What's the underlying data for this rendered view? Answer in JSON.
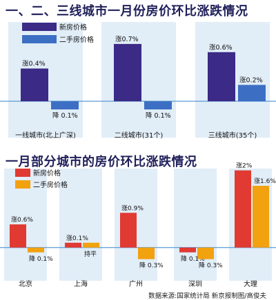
{
  "chart_data": [
    {
      "type": "bar",
      "title": "一、二、三线城市一月份房价环比涨跌情况",
      "categories": [
        "一线城市(北上广深)",
        "二线城市(31个)",
        "三线城市(35个)"
      ],
      "series": [
        {
          "name": "新房价格",
          "values": [
            0.4,
            0.7,
            0.6
          ],
          "labels": [
            "涨0.4%",
            "涨0.7%",
            "涨0.6%"
          ],
          "color": "#3b2a86"
        },
        {
          "name": "二手房价格",
          "values": [
            -0.1,
            -0.1,
            0.2
          ],
          "labels": [
            "降 0.1%",
            "降 0.1%",
            "涨0.2%"
          ],
          "color": "#3c6fc4"
        }
      ],
      "ylim": [
        -0.15,
        0.8
      ],
      "grid": false,
      "legend": "top-left"
    },
    {
      "type": "bar",
      "title": "一月部分城市的房价环比涨跌情况",
      "categories": [
        "北京",
        "上海",
        "广州",
        "深圳",
        "大理"
      ],
      "series": [
        {
          "name": "新房价格",
          "values": [
            0.6,
            0.1,
            0.9,
            -0.1,
            2.0
          ],
          "labels": [
            "涨0.6%",
            "涨0.1%",
            "涨0.9%",
            "降 0.1%",
            "涨2%"
          ],
          "color": "#e03a32"
        },
        {
          "name": "二手房价格",
          "values": [
            -0.1,
            0.0,
            -0.3,
            -0.3,
            1.6
          ],
          "labels": [
            "降 0.1%",
            "持平",
            "降 0.3%",
            "降 0.3%",
            "涨1.6%"
          ],
          "color": "#f2a10f"
        }
      ],
      "ylim": [
        -0.45,
        2.1
      ],
      "grid": false,
      "legend": "top-left"
    }
  ],
  "source": "数据来源:国家统计局 新京报制图/高俊夫",
  "colors": {
    "panel": "#e1edf7",
    "baseline": "#5b9bd5",
    "title": "#1f1f5a"
  }
}
